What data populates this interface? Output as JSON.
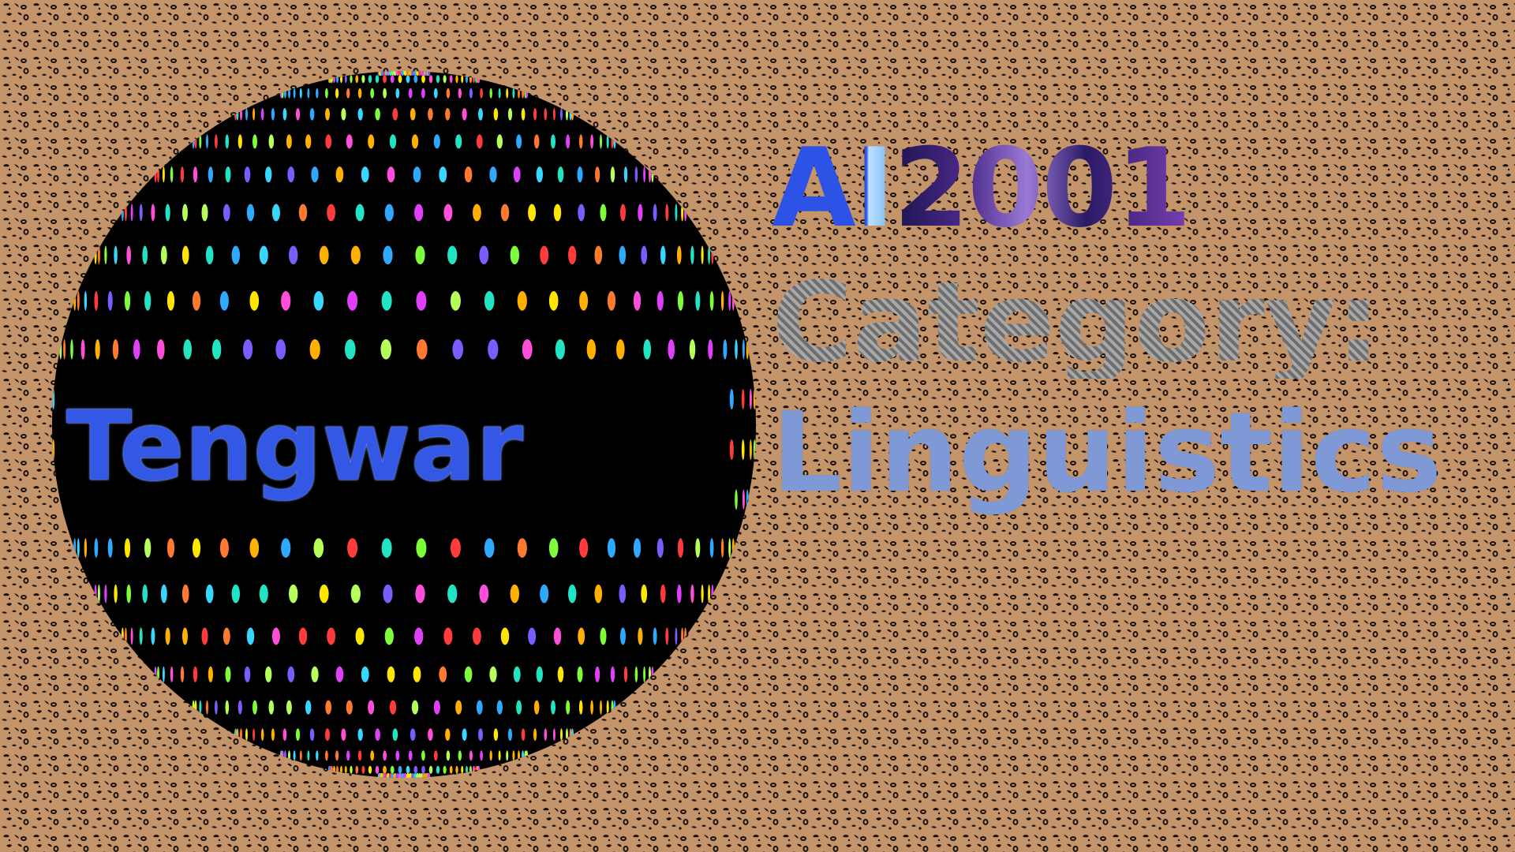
{
  "brand": {
    "prefix": "AI",
    "year": "2001"
  },
  "category": {
    "label": "Category:",
    "value": "Linguistics"
  },
  "sphere": {
    "label": "Tengwar"
  },
  "colors": {
    "background_base": "#c4946b",
    "background_spots": "#1a110b",
    "sphere_fill": "#000000",
    "brand_ai": "#2d52e6",
    "brand_year": "#6a2f9e",
    "category_label": "#8a8a8a",
    "category_value": "#7f98d6",
    "sphere_label": "#3358e6"
  },
  "icons": {
    "background": "leopard-print-pattern",
    "sphere": "disco-ball-dots"
  }
}
